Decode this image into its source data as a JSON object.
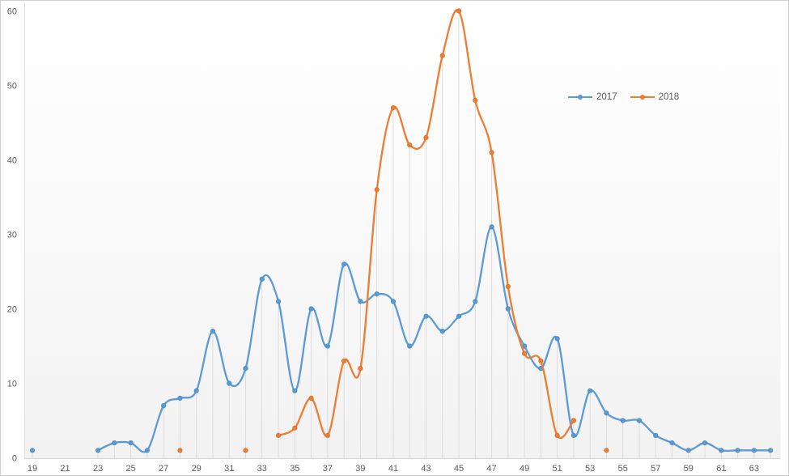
{
  "chart_data": {
    "type": "line",
    "title": "",
    "smooth": true,
    "drop_lines": true,
    "legend": {
      "position": "top-right",
      "entries": [
        "2017",
        "2018"
      ]
    },
    "x_axis": {
      "min": 19,
      "max": 64,
      "tick_labels": [
        19,
        21,
        23,
        25,
        27,
        29,
        31,
        33,
        35,
        37,
        39,
        41,
        43,
        45,
        47,
        49,
        51,
        53,
        55,
        57,
        59,
        61,
        63
      ]
    },
    "y_axis": {
      "min": 0,
      "max": 60,
      "ticks": [
        0,
        10,
        20,
        30,
        40,
        50,
        60
      ]
    },
    "colors": {
      "axis_line": "#d9d9d9",
      "y_axis_line": "#e2e2e2",
      "drop_line": "#dcdcdc",
      "tick_text": "#595959",
      "plot_bg_top": "#ffffff",
      "plot_bg_bottom": "#f2f2f2",
      "frame_border": "#cfcfcf"
    },
    "series": [
      {
        "name": "2017",
        "color": "#5B9BD5",
        "marker_edge": "#4a88c0",
        "points": [
          [
            19,
            1
          ],
          [
            23,
            1
          ],
          [
            24,
            2
          ],
          [
            25,
            2
          ],
          [
            26,
            1
          ],
          [
            27,
            7
          ],
          [
            28,
            8
          ],
          [
            29,
            9
          ],
          [
            30,
            17
          ],
          [
            31,
            10
          ],
          [
            32,
            12
          ],
          [
            33,
            24
          ],
          [
            34,
            21
          ],
          [
            35,
            9
          ],
          [
            36,
            20
          ],
          [
            37,
            15
          ],
          [
            38,
            26
          ],
          [
            39,
            21
          ],
          [
            40,
            22
          ],
          [
            41,
            21
          ],
          [
            42,
            15
          ],
          [
            43,
            19
          ],
          [
            44,
            17
          ],
          [
            45,
            19
          ],
          [
            46,
            21
          ],
          [
            47,
            31
          ],
          [
            48,
            20
          ],
          [
            49,
            15
          ],
          [
            50,
            12
          ],
          [
            51,
            16
          ],
          [
            52,
            3
          ],
          [
            53,
            9
          ],
          [
            54,
            6
          ],
          [
            55,
            5
          ],
          [
            56,
            5
          ],
          [
            57,
            3
          ],
          [
            58,
            2
          ],
          [
            59,
            1
          ],
          [
            60,
            2
          ],
          [
            61,
            1
          ],
          [
            62,
            1
          ],
          [
            63,
            1
          ],
          [
            64,
            1
          ]
        ]
      },
      {
        "name": "2018",
        "color": "#ED7D31",
        "marker_edge": "#d96f25",
        "points": [
          [
            28,
            1
          ],
          [
            32,
            1
          ],
          [
            34,
            3
          ],
          [
            35,
            4
          ],
          [
            36,
            8
          ],
          [
            37,
            3
          ],
          [
            38,
            13
          ],
          [
            39,
            12
          ],
          [
            40,
            36
          ],
          [
            41,
            47
          ],
          [
            42,
            42
          ],
          [
            43,
            43
          ],
          [
            44,
            54
          ],
          [
            45,
            60
          ],
          [
            46,
            48
          ],
          [
            47,
            41
          ],
          [
            48,
            23
          ],
          [
            49,
            14
          ],
          [
            50,
            13
          ],
          [
            51,
            3
          ],
          [
            52,
            5
          ],
          [
            54,
            1
          ]
        ]
      }
    ]
  }
}
